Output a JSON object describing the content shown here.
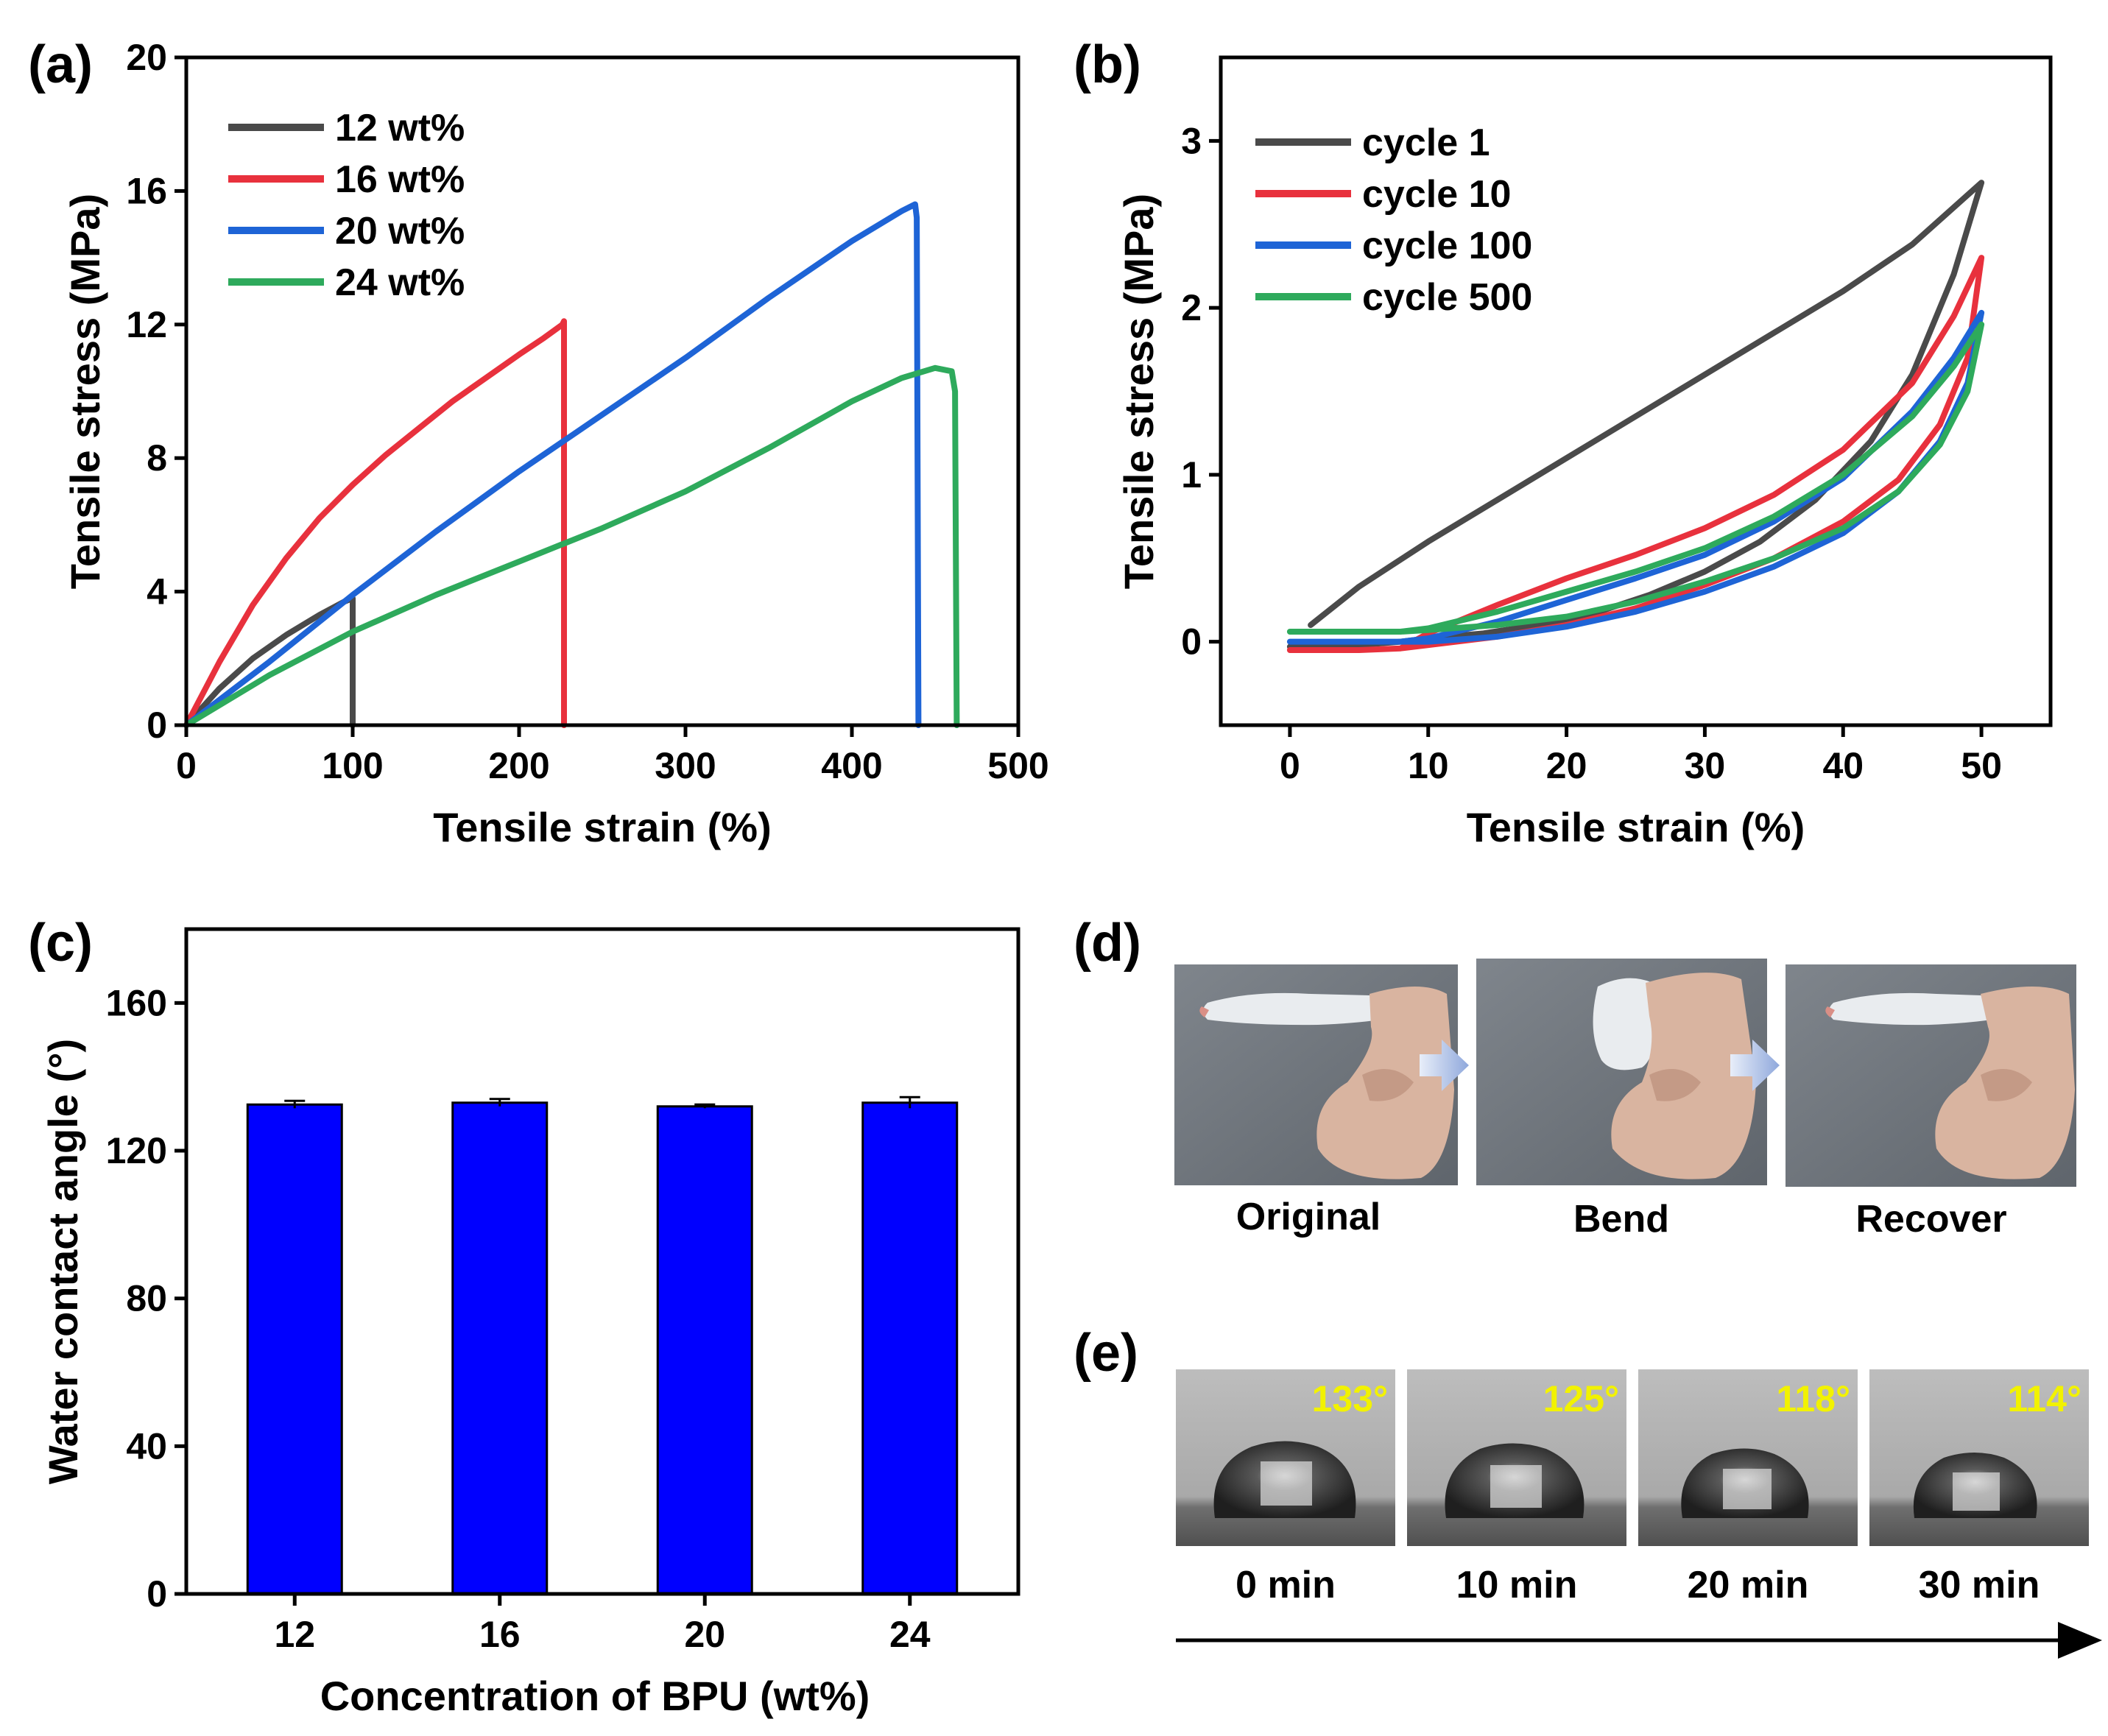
{
  "panels": {
    "a": {
      "label": "(a)"
    },
    "b": {
      "label": "(b)"
    },
    "c": {
      "label": "(c)"
    },
    "d": {
      "label": "(d)"
    },
    "e": {
      "label": "(e)"
    }
  },
  "photos_d": {
    "captions": [
      "Original",
      "Bend",
      "Recover"
    ]
  },
  "photos_e": {
    "angles": [
      "133°",
      "125°",
      "118°",
      "114°"
    ],
    "times": [
      "0 min",
      "10 min",
      "20 min",
      "30 min"
    ],
    "angle_color": "#f2f200"
  },
  "chart_data": [
    {
      "id": "a",
      "type": "line",
      "xlabel": "Tensile strain (%)",
      "ylabel": "Tensile stress (MPa)",
      "xlim": [
        0,
        500
      ],
      "ylim": [
        0,
        20
      ],
      "xticks": [
        0,
        100,
        200,
        300,
        400,
        500
      ],
      "yticks": [
        0,
        4,
        8,
        12,
        16,
        20
      ],
      "legend_position": "top-left",
      "series": [
        {
          "name": "12 wt%",
          "color": "#4a4a4a",
          "x": [
            0,
            20,
            40,
            60,
            80,
            95,
            100,
            100
          ],
          "y": [
            0,
            1.1,
            2.0,
            2.7,
            3.3,
            3.7,
            3.8,
            0
          ]
        },
        {
          "name": "16 wt%",
          "color": "#e8313d",
          "x": [
            0,
            20,
            40,
            60,
            80,
            100,
            120,
            140,
            160,
            180,
            200,
            215,
            226,
            227,
            227
          ],
          "y": [
            0,
            1.9,
            3.6,
            5.0,
            6.2,
            7.2,
            8.1,
            8.9,
            9.7,
            10.4,
            11.1,
            11.6,
            12.0,
            12.1,
            0
          ]
        },
        {
          "name": "20 wt%",
          "color": "#1e64d6",
          "x": [
            0,
            50,
            100,
            150,
            200,
            250,
            300,
            350,
            400,
            430,
            438,
            439,
            440
          ],
          "y": [
            0,
            1.9,
            3.9,
            5.8,
            7.6,
            9.3,
            11.0,
            12.8,
            14.5,
            15.4,
            15.6,
            15.2,
            0
          ]
        },
        {
          "name": "24 wt%",
          "color": "#2eaa5c",
          "x": [
            0,
            50,
            100,
            150,
            200,
            250,
            300,
            350,
            400,
            430,
            450,
            460,
            462,
            463
          ],
          "y": [
            0,
            1.5,
            2.8,
            3.9,
            4.9,
            5.9,
            7.0,
            8.3,
            9.7,
            10.4,
            10.7,
            10.6,
            10.0,
            0
          ]
        }
      ]
    },
    {
      "id": "b",
      "type": "line",
      "xlabel": "Tensile strain (%)",
      "ylabel": "Tensile stress (MPa)",
      "xlim": [
        -5,
        55
      ],
      "ylim": [
        -0.5,
        3.5
      ],
      "xticks": [
        0,
        10,
        20,
        30,
        40,
        50
      ],
      "yticks": [
        0,
        1,
        2,
        3
      ],
      "legend_position": "top-left",
      "series": [
        {
          "name": "cycle 1",
          "color": "#4a4a4a",
          "x": [
            1.5,
            5,
            10,
            15,
            20,
            25,
            30,
            35,
            40,
            45,
            50,
            48,
            45,
            42,
            38,
            34,
            30,
            26,
            22,
            18,
            14,
            10,
            8,
            5,
            2,
            0
          ],
          "y": [
            0.1,
            0.33,
            0.6,
            0.85,
            1.1,
            1.35,
            1.6,
            1.85,
            2.1,
            2.38,
            2.75,
            2.2,
            1.6,
            1.2,
            0.85,
            0.6,
            0.42,
            0.28,
            0.17,
            0.1,
            0.05,
            0.02,
            0.0,
            -0.02,
            -0.03,
            -0.03
          ]
        },
        {
          "name": "cycle 10",
          "color": "#e8313d",
          "x": [
            0,
            5,
            8,
            10,
            15,
            20,
            25,
            30,
            35,
            40,
            45,
            48,
            50,
            49,
            47,
            44,
            40,
            35,
            30,
            25,
            20,
            15,
            10,
            8,
            5,
            0
          ],
          "y": [
            -0.05,
            -0.05,
            -0.04,
            0.05,
            0.22,
            0.38,
            0.52,
            0.68,
            0.88,
            1.15,
            1.55,
            1.95,
            2.3,
            1.7,
            1.3,
            0.97,
            0.72,
            0.5,
            0.34,
            0.2,
            0.1,
            0.03,
            -0.02,
            -0.04,
            -0.05,
            -0.05
          ]
        },
        {
          "name": "cycle 100",
          "color": "#1e64d6",
          "x": [
            0,
            5,
            8,
            10,
            15,
            20,
            25,
            30,
            35,
            40,
            45,
            48,
            50,
            49,
            47,
            44,
            40,
            35,
            30,
            25,
            20,
            15,
            10,
            8,
            5,
            0
          ],
          "y": [
            0.0,
            0.0,
            0.0,
            0.02,
            0.12,
            0.25,
            0.38,
            0.52,
            0.72,
            0.98,
            1.38,
            1.7,
            1.97,
            1.55,
            1.2,
            0.9,
            0.65,
            0.45,
            0.3,
            0.18,
            0.09,
            0.03,
            0.0,
            0.0,
            0.0,
            0.0
          ]
        },
        {
          "name": "cycle 500",
          "color": "#2eaa5c",
          "x": [
            0,
            5,
            8,
            10,
            15,
            20,
            25,
            30,
            35,
            40,
            45,
            48,
            50,
            49,
            47,
            44,
            40,
            35,
            30,
            25,
            20,
            15,
            10,
            8,
            5,
            0
          ],
          "y": [
            0.06,
            0.06,
            0.06,
            0.08,
            0.18,
            0.3,
            0.42,
            0.56,
            0.75,
            1.0,
            1.35,
            1.65,
            1.9,
            1.5,
            1.18,
            0.9,
            0.68,
            0.5,
            0.36,
            0.24,
            0.15,
            0.1,
            0.07,
            0.06,
            0.06,
            0.06
          ]
        }
      ]
    },
    {
      "id": "c",
      "type": "bar",
      "xlabel": "Concentration of BPU (wt%)",
      "ylabel": "Water contact angle (°)",
      "ylim": [
        0,
        180
      ],
      "yticks": [
        0,
        40,
        80,
        120,
        160
      ],
      "categories": [
        "12",
        "16",
        "20",
        "24"
      ],
      "values": [
        132.5,
        133.0,
        132.0,
        133.0
      ],
      "errors": [
        1.0,
        1.0,
        0.5,
        1.5
      ],
      "bar_color": "#0000ff"
    }
  ]
}
